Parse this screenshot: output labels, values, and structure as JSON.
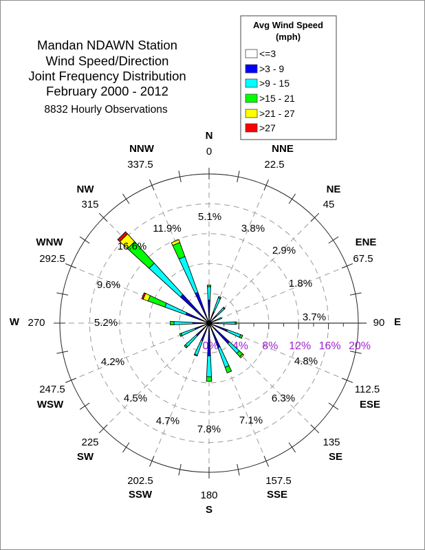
{
  "title_lines": [
    "Mandan NDAWN Station",
    "Wind Speed/Direction",
    "Joint Frequency Distribution",
    "February 2000 - 2012"
  ],
  "subtitle": "8832 Hourly Observations",
  "legend": {
    "title_line1": "Avg Wind Speed",
    "title_line2": "(mph)",
    "items": [
      {
        "label": "<=3",
        "color": "#ffffff"
      },
      {
        "label": ">3 - 9",
        "color": "#0000ff"
      },
      {
        "label": ">9 - 15",
        "color": "#00ffff"
      },
      {
        "label": ">15 - 21",
        "color": "#00ff00"
      },
      {
        "label": ">21 - 27",
        "color": "#ffff00"
      },
      {
        "label": ">27",
        "color": "#ff0000"
      }
    ]
  },
  "chart_data": {
    "type": "wind-rose",
    "title": "Mandan NDAWN Station Wind Speed/Direction Joint Frequency Distribution February 2000 - 2012",
    "radial_axis": {
      "min": 0,
      "max": 20,
      "ticks": [
        "0%",
        "4%",
        "8%",
        "12%",
        "16%",
        "20%"
      ],
      "tick_color": "#a020d0"
    },
    "grid": true,
    "legend_position": "top-right",
    "series_names": [
      "<=3",
      ">3 - 9",
      ">9 - 15",
      ">15 - 21",
      ">21 - 27",
      ">27"
    ],
    "directions": [
      {
        "name": "N",
        "degrees": "0",
        "angle": 0,
        "total": "5.1%",
        "values": [
          0,
          3.1,
          1.8,
          0.2,
          0,
          0
        ]
      },
      {
        "name": "NNE",
        "degrees": "22.5",
        "angle": 22.5,
        "total": "3.8%",
        "values": [
          0,
          1.6,
          2.0,
          0.2,
          0,
          0
        ]
      },
      {
        "name": "NE",
        "degrees": "45",
        "angle": 45,
        "total": "2.9%",
        "values": [
          0,
          1.3,
          1.5,
          0.1,
          0,
          0
        ]
      },
      {
        "name": "ENE",
        "degrees": "67.5",
        "angle": 67.5,
        "total": "1.8%",
        "values": [
          0,
          0.9,
          0.9,
          0,
          0,
          0
        ]
      },
      {
        "name": "E",
        "degrees": "90",
        "angle": 90,
        "total": "3.7%",
        "values": [
          0,
          1.3,
          2.2,
          0.2,
          0,
          0
        ]
      },
      {
        "name": "ESE",
        "degrees": "112.5",
        "angle": 112.5,
        "total": "4.8%",
        "values": [
          0,
          2.6,
          1.9,
          0.3,
          0,
          0
        ]
      },
      {
        "name": "SE",
        "degrees": "135",
        "angle": 135,
        "total": "6.3%",
        "values": [
          0,
          3.7,
          1.8,
          0.6,
          0.2,
          0
        ]
      },
      {
        "name": "SSE",
        "degrees": "157.5",
        "angle": 157.5,
        "total": "7.1%",
        "values": [
          0,
          3.5,
          2.8,
          0.8,
          0,
          0
        ]
      },
      {
        "name": "S",
        "degrees": "180",
        "angle": 180,
        "total": "7.8%",
        "values": [
          0,
          4.4,
          2.8,
          0.6,
          0,
          0
        ]
      },
      {
        "name": "SSW",
        "degrees": "202.5",
        "angle": 202.5,
        "total": "4.7%",
        "values": [
          0,
          2.5,
          2.1,
          0.1,
          0,
          0
        ]
      },
      {
        "name": "SW",
        "degrees": "225",
        "angle": 225,
        "total": "4.5%",
        "values": [
          0,
          2.3,
          2.0,
          0.2,
          0,
          0
        ]
      },
      {
        "name": "WSW",
        "degrees": "247.5",
        "angle": 247.5,
        "total": "4.2%",
        "values": [
          0,
          2.0,
          2.0,
          0.2,
          0,
          0
        ]
      },
      {
        "name": "W",
        "degrees": "270",
        "angle": 270,
        "total": "5.2%",
        "values": [
          0,
          2.2,
          2.5,
          0.5,
          0,
          0
        ]
      },
      {
        "name": "WNW",
        "degrees": "292.5",
        "angle": 292.5,
        "total": "9.6%",
        "values": [
          0,
          3.3,
          3.0,
          2.4,
          0.7,
          0.2
        ]
      },
      {
        "name": "NW",
        "degrees": "315",
        "angle": 315,
        "total": "16.6%",
        "values": [
          0,
          5.2,
          5.7,
          3.9,
          1.4,
          0.4
        ]
      },
      {
        "name": "NNW",
        "degrees": "337.5",
        "angle": 337.5,
        "total": "11.9%",
        "values": [
          0,
          4.4,
          5.1,
          2.0,
          0.4,
          0
        ]
      }
    ]
  }
}
